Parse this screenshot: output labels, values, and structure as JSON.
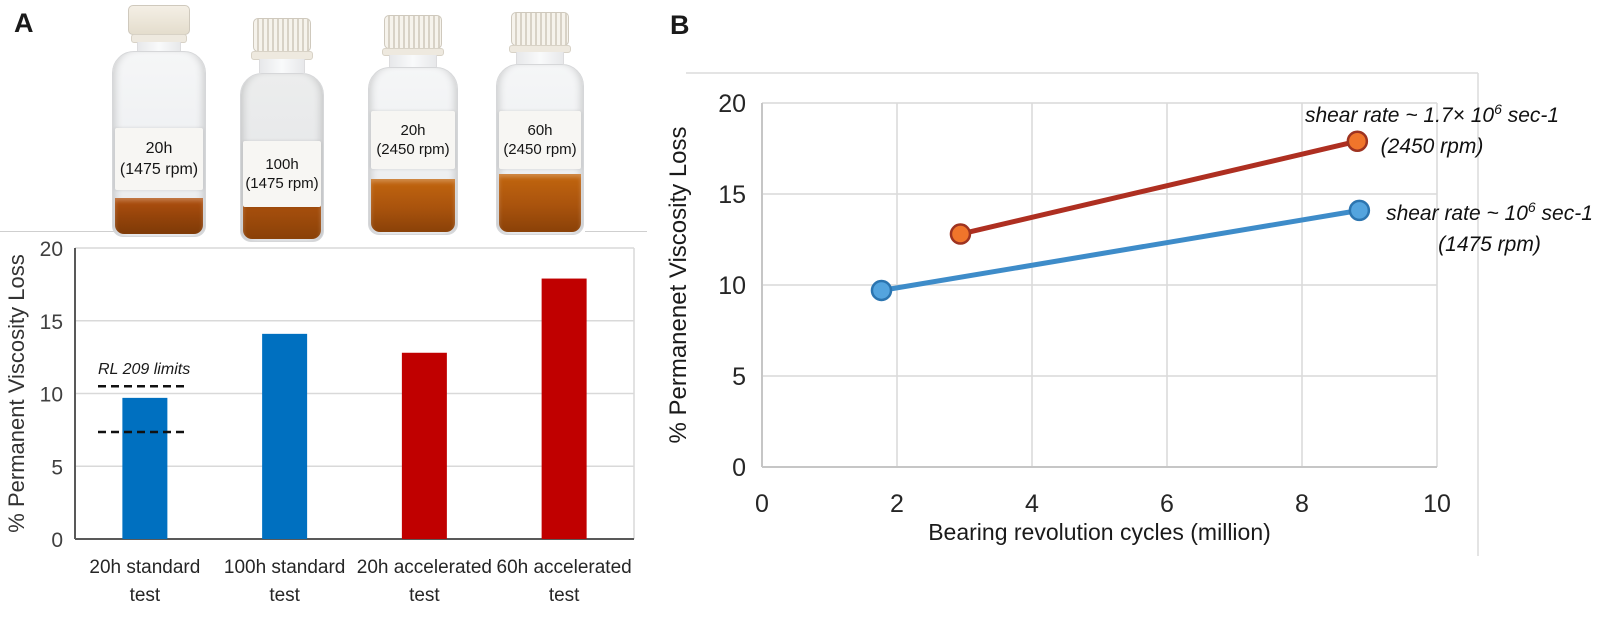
{
  "panel_a": {
    "label": "A",
    "bottles": [
      {
        "line1": "20h",
        "line2": "(1475 rpm)"
      },
      {
        "line1": "100h",
        "line2": "(1475 rpm)"
      },
      {
        "line1": "20h",
        "line2": "(2450 rpm)"
      },
      {
        "line1": "60h",
        "line2": "(2450 rpm)"
      }
    ]
  },
  "panel_b": {
    "label": "B"
  },
  "chart_data": [
    {
      "type": "bar",
      "title": "",
      "categories": [
        [
          "20h standard",
          "test"
        ],
        [
          "100h standard",
          "test"
        ],
        [
          "20h accelerated",
          "test"
        ],
        [
          "60h accelerated",
          "test"
        ]
      ],
      "values": [
        9.7,
        14.1,
        12.8,
        17.9
      ],
      "bar_colors": [
        "#0070C0",
        "#0070C0",
        "#C00000",
        "#C00000"
      ],
      "xlabel": "",
      "ylabel": "% Permanent Viscosity Loss",
      "ylim": [
        0,
        20
      ],
      "yticks": [
        0,
        5,
        10,
        15,
        20
      ],
      "grid": true,
      "legend": "none",
      "annotation_label": "RL 209 limits",
      "limit_lines": [
        10.5,
        7.35
      ]
    },
    {
      "type": "line",
      "title": "",
      "xlabel": "Bearing revolution cycles (million)",
      "ylabel": "% Permanenet Viscosity Loss",
      "xlim": [
        0,
        10
      ],
      "xticks": [
        0,
        2,
        4,
        6,
        8,
        10
      ],
      "ylim": [
        0,
        20
      ],
      "yticks": [
        0,
        5,
        10,
        15,
        20
      ],
      "grid": true,
      "legend": "annotations-right",
      "series": [
        {
          "name": "shear rate ~ 10^6 sec-1 (1475 rpm)",
          "x": [
            1.77,
            8.85
          ],
          "y": [
            9.7,
            14.1
          ],
          "line_color": "#3E8CC9",
          "marker_fill": "#54A4DE",
          "marker_stroke": "#2C75B0"
        },
        {
          "name": "shear rate ~ 1.7x 10^6 sec-1 (2450 rpm)",
          "x": [
            2.94,
            8.82
          ],
          "y": [
            12.8,
            17.9
          ],
          "line_color": "#AE2F21",
          "marker_fill": "#F0752B",
          "marker_stroke": "#9E3320"
        }
      ],
      "annotations": [
        {
          "prefix": "shear rate ~ 1.7× 10",
          "sup": "6",
          "suffix": " sec-1",
          "line2": "(2450 rpm)"
        },
        {
          "prefix": "shear rate ~ 10",
          "sup": "6",
          "suffix": " sec-1",
          "line2": "(1475 rpm)"
        }
      ]
    }
  ]
}
